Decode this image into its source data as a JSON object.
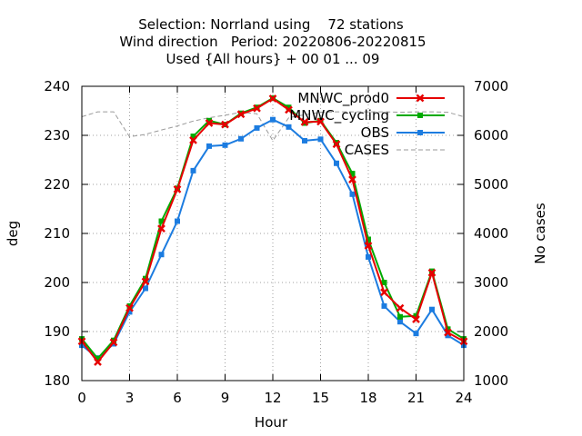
{
  "chart_data": {
    "type": "line",
    "title_lines": [
      "Selection: Norrland using    72 stations",
      "Wind direction   Period: 20220806-20220815",
      "Used {All hours} + 00 01 ... 09"
    ],
    "xlabel": "Hour",
    "ylabel": "deg",
    "y2label": "No cases",
    "xlim": [
      0,
      24
    ],
    "ylim": [
      180,
      240
    ],
    "y2lim": [
      1000,
      7000
    ],
    "xticks": [
      0,
      3,
      6,
      9,
      12,
      15,
      18,
      21,
      24
    ],
    "yticks": [
      180,
      190,
      200,
      210,
      220,
      230,
      240
    ],
    "y2ticks": [
      1000,
      2000,
      3000,
      4000,
      5000,
      6000,
      7000
    ],
    "grid": true,
    "legend_position": "top-right",
    "x": [
      0,
      1,
      2,
      3,
      4,
      5,
      6,
      7,
      8,
      9,
      10,
      11,
      12,
      13,
      14,
      15,
      16,
      17,
      18,
      19,
      20,
      21,
      22,
      23,
      24
    ],
    "series": [
      {
        "name": "MNWC_prod0",
        "axis": "left",
        "color": "#e60000",
        "marker": "cross",
        "values": [
          188,
          183.8,
          187.8,
          194.8,
          200.2,
          211,
          219,
          229,
          232.5,
          232.2,
          234.3,
          235.5,
          237.5,
          235.2,
          232.7,
          232.8,
          228.2,
          221,
          207.5,
          198,
          194.8,
          192.5,
          202,
          189.8,
          188
        ]
      },
      {
        "name": "MNWC_cycling",
        "axis": "left",
        "color": "#00aa00",
        "marker": "square",
        "values": [
          188.5,
          184.5,
          188.2,
          195.2,
          200.8,
          212.5,
          219.2,
          229.8,
          233,
          232.2,
          234.5,
          235.7,
          237.6,
          235.7,
          232.5,
          233,
          228.5,
          222.2,
          208.8,
          200,
          193,
          193.2,
          202.3,
          190.5,
          188.5
        ]
      },
      {
        "name": "OBS",
        "axis": "left",
        "color": "#1c7ce0",
        "marker": "square",
        "values": [
          187.2,
          184.6,
          187.5,
          194,
          198.8,
          205.7,
          212.5,
          222.8,
          227.8,
          228,
          229.3,
          231.5,
          233.2,
          231.7,
          228.9,
          229.2,
          224.3,
          218,
          205.2,
          195.2,
          192,
          189.6,
          194.5,
          189.2,
          187.2
        ]
      },
      {
        "name": "CASES",
        "axis": "right",
        "color": "#9a9a9a",
        "style": "dashed",
        "values": [
          6380,
          6480,
          6480,
          5970,
          6020,
          6110,
          6190,
          6290,
          6360,
          6410,
          6470,
          6440,
          5890,
          6360,
          6420,
          6470,
          6480,
          6480,
          6480,
          6480,
          6470,
          6480,
          6480,
          6470,
          6380
        ]
      }
    ]
  }
}
